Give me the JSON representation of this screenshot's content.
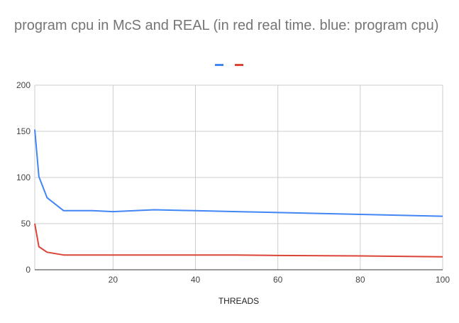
{
  "chart_data": {
    "type": "line",
    "title": "program cpu in McS and REAL  (in red real time. blue: program cpu)",
    "xlabel": "THREADS",
    "ylabel": "",
    "xlim": [
      1,
      100
    ],
    "ylim": [
      0,
      200
    ],
    "xticks": [
      20,
      40,
      60,
      80,
      100
    ],
    "yticks": [
      0,
      50,
      100,
      150,
      200
    ],
    "grid": true,
    "legend": "top-center",
    "series": [
      {
        "color": "#4285F4",
        "x": [
          1,
          2,
          4,
          8,
          10,
          15,
          20,
          30,
          40,
          50,
          60,
          80,
          100
        ],
        "y": [
          152,
          101,
          78,
          64,
          64,
          64,
          63,
          65,
          64,
          63,
          62,
          60,
          58
        ]
      },
      {
        "color": "#DB4437",
        "x": [
          1,
          2,
          4,
          8,
          10,
          15,
          20,
          30,
          40,
          50,
          60,
          80,
          100
        ],
        "y": [
          50,
          25,
          19,
          16,
          16,
          16,
          16,
          16,
          16,
          16,
          15.5,
          15,
          14
        ]
      }
    ]
  }
}
